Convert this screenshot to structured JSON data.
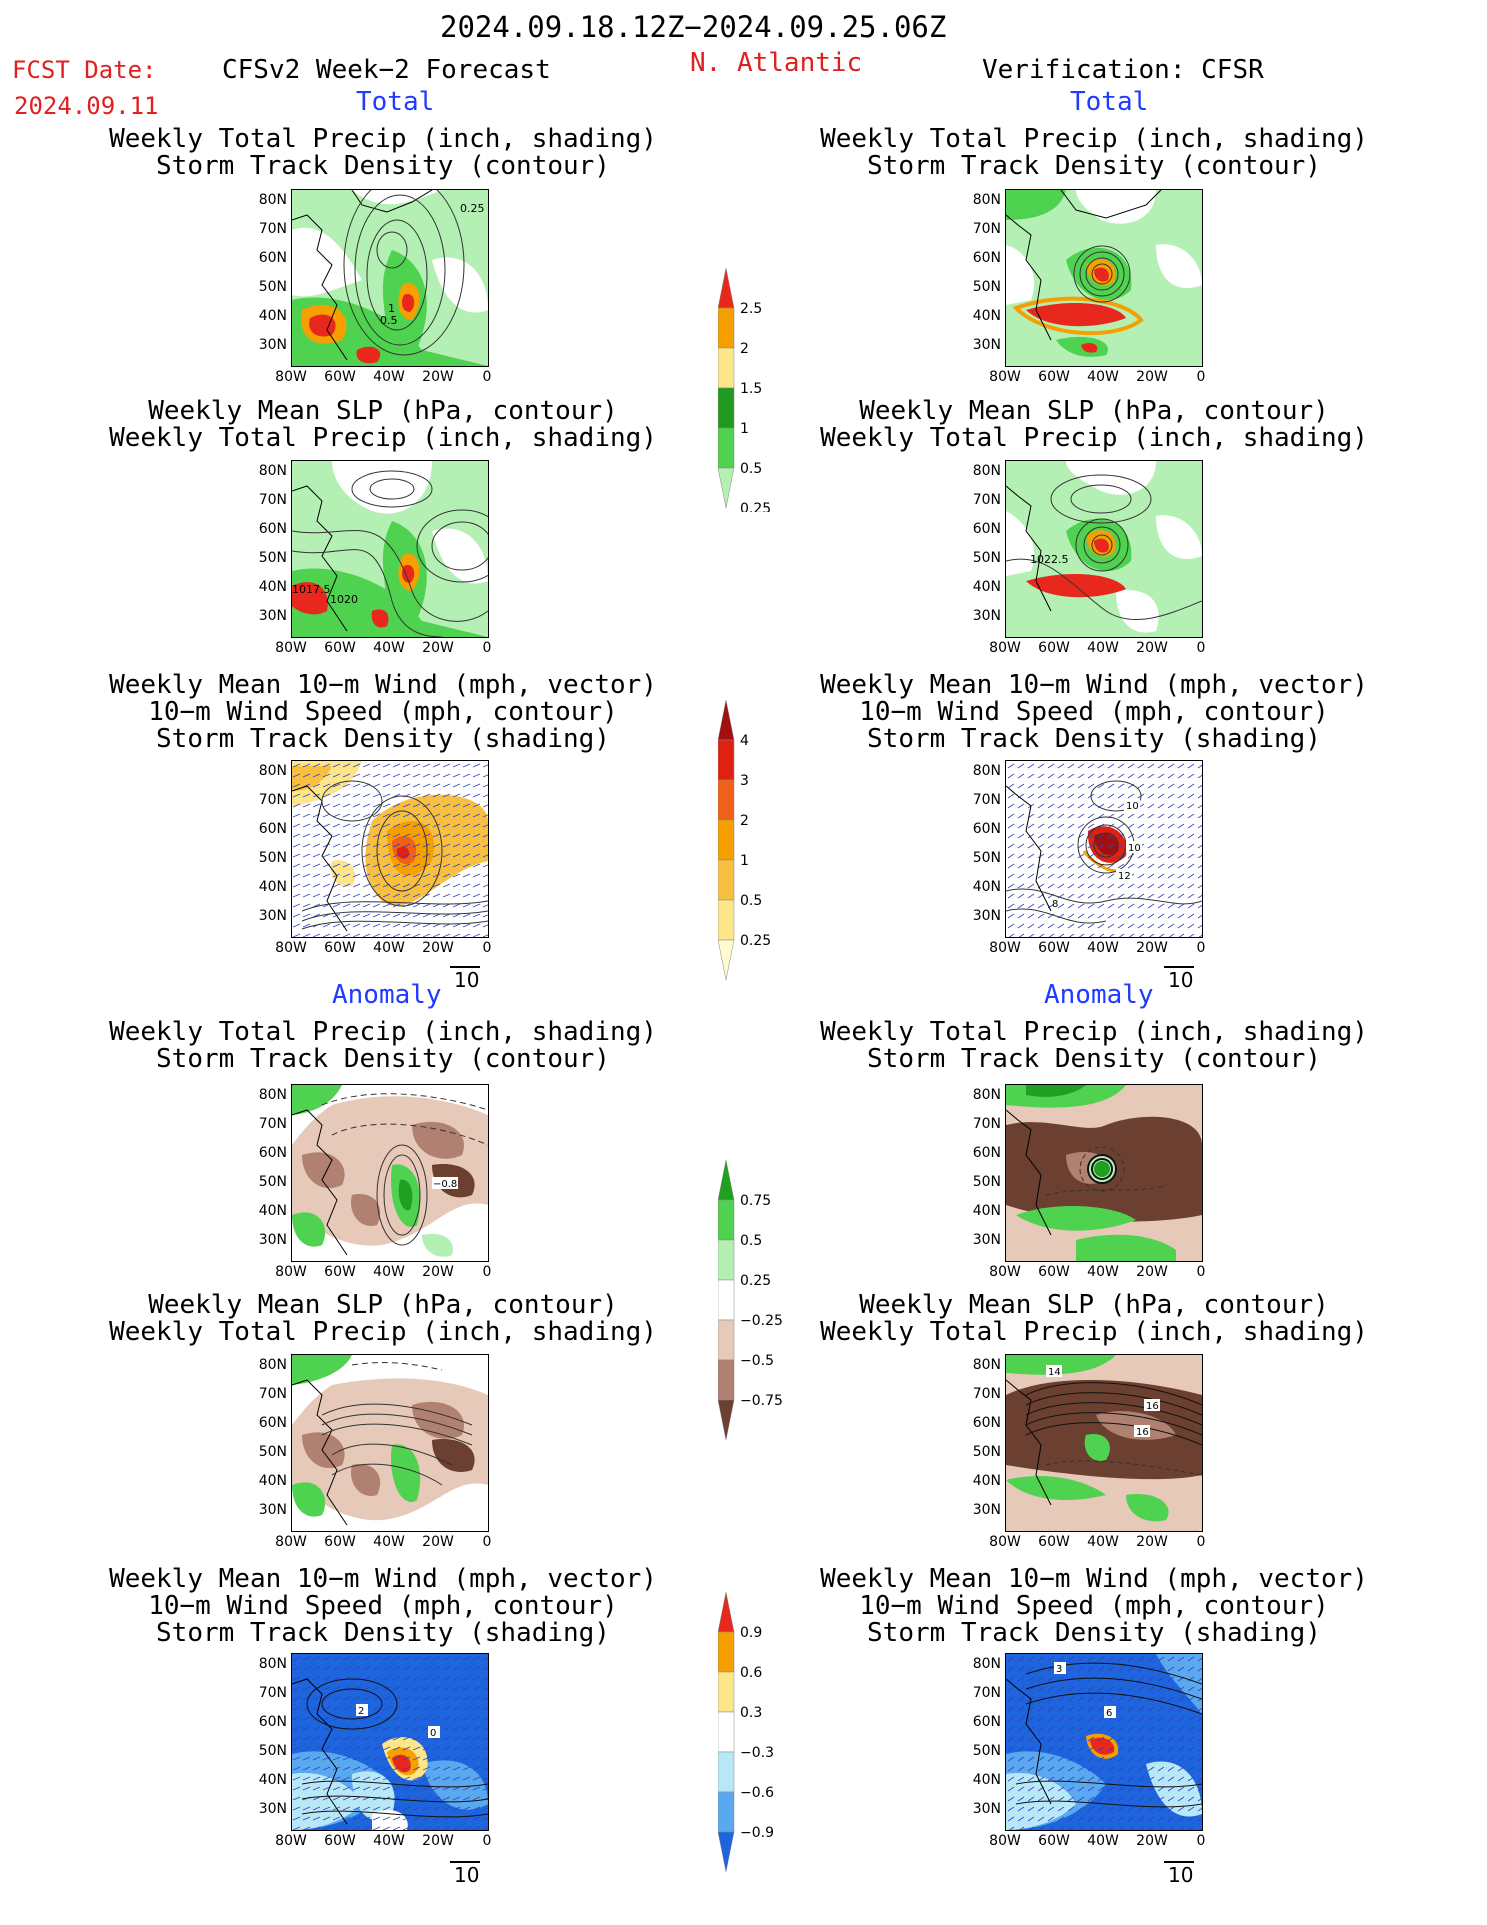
{
  "header": {
    "period": "2024.09.18.12Z−2024.09.25.06Z",
    "fcst_label": "FCST Date:",
    "fcst_date": "2024.09.11",
    "model_title": "CFSv2 Week−2 Forecast",
    "region": "N. Atlantic",
    "verification": "Verification: CFSR"
  },
  "sections": {
    "total": "Total",
    "anomaly": "Anomaly"
  },
  "panel_titles": {
    "precip_track": [
      "Weekly Total Precip (inch, shading)",
      "Storm Track Density (contour)"
    ],
    "slp_precip": [
      "Weekly Mean SLP (hPa, contour)",
      "Weekly Total Precip (inch, shading)"
    ],
    "wind_track": [
      "Weekly Mean 10−m Wind (mph, vector)",
      "10−m Wind Speed (mph, contour)",
      "Storm Track Density (shading)"
    ]
  },
  "map_axes": {
    "lat_labels": [
      "80N",
      "70N",
      "60N",
      "50N",
      "40N",
      "30N"
    ],
    "lon_labels": [
      "80W",
      "60W",
      "40W",
      "20W",
      "0"
    ]
  },
  "vector_ref": "10",
  "contour_labels": {
    "fc_total_precip": [
      "0.25",
      "1",
      "0.5"
    ],
    "fc_total_slp": [
      "1017.5",
      "1020"
    ],
    "an_total_slp": [
      "1022.5"
    ],
    "an_total_wind": [
      "10",
      "10",
      "12",
      "8"
    ],
    "fc_anom_precip": [
      "−0.8"
    ],
    "an_anom_slp": [
      "14",
      "16",
      "16"
    ],
    "fc_anom_wind": [
      "2",
      "0"
    ],
    "an_anom_wind": [
      "3",
      "6"
    ]
  },
  "colorbars": {
    "precip_total": {
      "labels": [
        "2.5",
        "2",
        "1.5",
        "1",
        "0.5",
        "0.25"
      ],
      "colors": [
        "#e8281c",
        "#f5a000",
        "#fde58a",
        "#1f9a1f",
        "#4fd24f",
        "#b4f0b4"
      ]
    },
    "track_total": {
      "labels": [
        "4",
        "3",
        "2",
        "1",
        "0.5",
        "0.25"
      ],
      "colors": [
        "#a01010",
        "#e02010",
        "#f06018",
        "#f5a000",
        "#f8c040",
        "#fde58a",
        "#fffbd0"
      ]
    },
    "precip_anom": {
      "labels": [
        "0.75",
        "0.5",
        "0.25",
        "−0.25",
        "−0.5",
        "−0.75"
      ],
      "colors": [
        "#20a020",
        "#4fd24f",
        "#b4f0b4",
        "#ffffff",
        "#e6c9b8",
        "#b08070",
        "#6b4030"
      ]
    },
    "track_anom": {
      "labels": [
        "0.9",
        "0.6",
        "0.3",
        "−0.3",
        "−0.6",
        "−0.9"
      ],
      "colors": [
        "#e8281c",
        "#f5a000",
        "#fde58a",
        "#ffffff",
        "#b8e8f8",
        "#5aa8f0",
        "#1e64dc"
      ]
    }
  }
}
